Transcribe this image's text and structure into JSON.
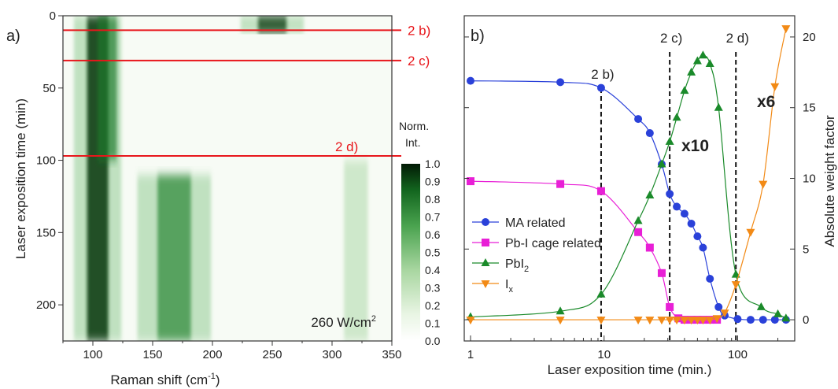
{
  "colors": {
    "red": "#e8161b",
    "blue": "#2a41d9",
    "magenta": "#e81fd6",
    "green": "#1a8a2a",
    "orange": "#f28a16",
    "dark_green": "#0a3a10"
  },
  "chart_data": [
    {
      "type": "heatmap",
      "panel_label": "a)",
      "xlabel": "Raman shift (cm",
      "xlabel_sup": "-1",
      "xlabel_end": ")",
      "ylabel": "Laser exposition time (min)",
      "xlim": [
        75,
        350
      ],
      "ylim": [
        0,
        225
      ],
      "y_inverted": true,
      "x_ticks": [
        100,
        150,
        200,
        250,
        300,
        350
      ],
      "y_ticks": [
        0,
        50,
        100,
        150,
        200
      ],
      "annotation": "260 W/cm",
      "annotation_sup": "2",
      "bands": [
        {
          "center": 104,
          "width": 9,
          "intensity": 1.0,
          "t_from": 0,
          "t_to": 225
        },
        {
          "center": 112,
          "width": 8,
          "intensity": 0.5,
          "t_from": 0,
          "t_to": 100
        },
        {
          "center": 168,
          "width": 14,
          "intensity": 0.6,
          "t_from": 110,
          "t_to": 225
        },
        {
          "center": 250,
          "width": 12,
          "intensity": 0.9,
          "t_from": 0,
          "t_to": 12
        },
        {
          "center": 320,
          "width": 10,
          "intensity": 0.15,
          "t_from": 100,
          "t_to": 225
        }
      ],
      "markers": [
        {
          "time": 10,
          "label": "2 b)"
        },
        {
          "time": 31,
          "label": "2 c)"
        },
        {
          "time": 97,
          "label": "2 d)"
        }
      ],
      "colorbar": {
        "title_line1": "Norm.",
        "title_line2": "Int.",
        "ticks": [
          "1.0",
          "0.9",
          "0.8",
          "0.7",
          "0.6",
          "0.5",
          "0.4",
          "0.3",
          "0.2",
          "0.1",
          "0.0"
        ]
      }
    },
    {
      "type": "line",
      "panel_label": "b)",
      "xlabel": "Laser exposition time (min.)",
      "ylabel": "Absolute weight factor",
      "x_scale": "log",
      "xlim": [
        1,
        240
      ],
      "ylim": [
        -1.5,
        21.5
      ],
      "x_ticks": [
        "1",
        "10",
        "100"
      ],
      "y_ticks": [
        0,
        5,
        10,
        15,
        20
      ],
      "markers": [
        {
          "time": 9.5,
          "label": "2 b)"
        },
        {
          "time": 31,
          "label": "2 c)"
        },
        {
          "time": 97,
          "label": "2 d)"
        }
      ],
      "annotations": [
        "x10",
        "x6"
      ],
      "series": [
        {
          "name": "MA related",
          "color": "#2a41d9",
          "marker": "circle",
          "x": [
            1,
            4.7,
            9.5,
            18,
            22,
            27,
            31,
            35,
            40,
            45,
            50,
            55,
            62,
            72,
            80,
            100,
            125,
            155,
            190,
            230
          ],
          "y": [
            16.9,
            16.8,
            16.4,
            14.2,
            13.2,
            11.0,
            8.9,
            8.0,
            7.5,
            6.8,
            5.9,
            5.1,
            2.9,
            0.9,
            0.3,
            0.05,
            0.0,
            0.0,
            0.0,
            0.0
          ]
        },
        {
          "name": "Pb-I cage related",
          "color": "#e81fd6",
          "marker": "square",
          "x": [
            1,
            4.7,
            9.5,
            18,
            22,
            27,
            31,
            36,
            40,
            45,
            50,
            55,
            62,
            70
          ],
          "y": [
            9.8,
            9.6,
            9.1,
            6.2,
            5.1,
            3.3,
            0.9,
            0.1,
            0.0,
            0.0,
            0.0,
            0.0,
            0.0,
            0.0
          ]
        },
        {
          "name": "PbI",
          "name_sub": "2",
          "color": "#1a8a2a",
          "marker": "triangle",
          "x": [
            1,
            4.7,
            9.5,
            18,
            22,
            27,
            31,
            35,
            40,
            45,
            50,
            55,
            62,
            72,
            97,
            150,
            200,
            230
          ],
          "y": [
            0.2,
            0.6,
            1.8,
            7.0,
            8.8,
            11.0,
            12.6,
            14.3,
            16.2,
            17.5,
            18.3,
            18.7,
            18.1,
            15.0,
            3.2,
            0.9,
            0.4,
            0.1
          ]
        },
        {
          "name": "I",
          "name_sub": "x",
          "color": "#f28a16",
          "marker": "triangle-down",
          "x": [
            1,
            4.7,
            9.5,
            18,
            22,
            27,
            31,
            35,
            40,
            45,
            50,
            55,
            62,
            70,
            80,
            97,
            125,
            155,
            190,
            230
          ],
          "y": [
            0,
            0,
            0,
            0,
            0,
            0,
            0,
            0,
            0,
            0,
            0,
            0,
            0,
            0.1,
            0.5,
            2.5,
            6.2,
            9.6,
            16.5,
            20.6
          ]
        }
      ]
    }
  ]
}
